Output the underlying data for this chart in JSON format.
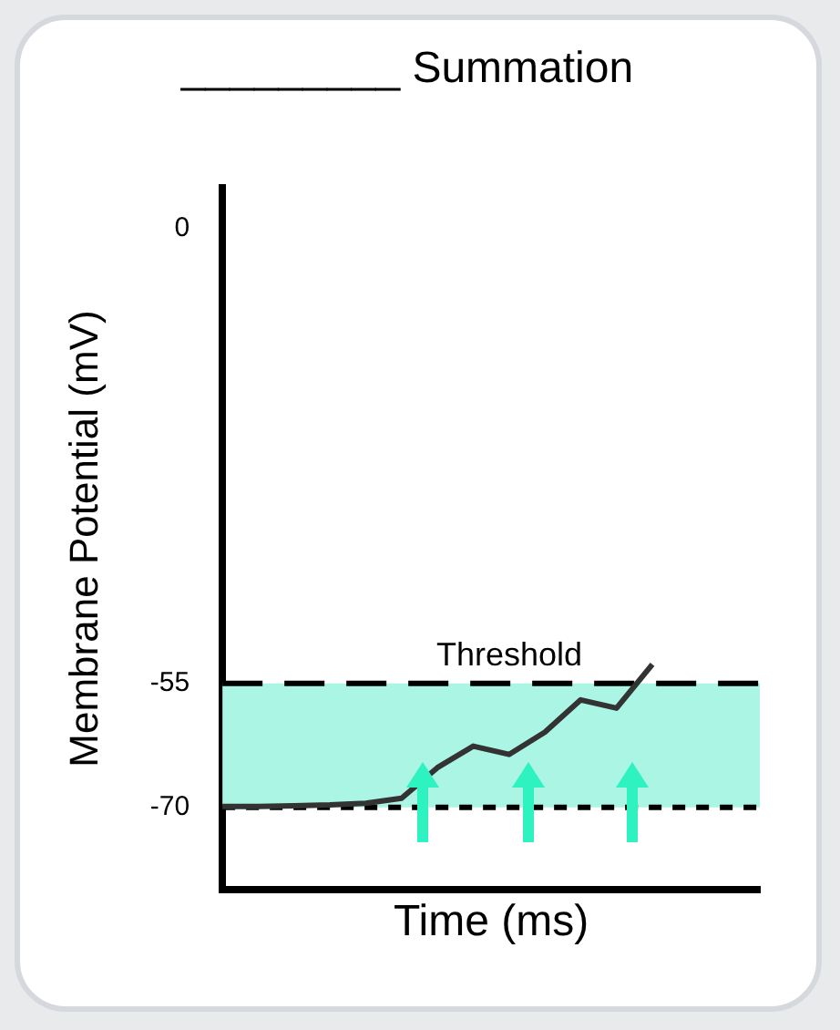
{
  "chart_data": {
    "type": "line",
    "title": "_________ Summation",
    "xlabel": "Time (ms)",
    "ylabel": "Membrane Potential (mV)",
    "categories": [
      null,
      null,
      null,
      null,
      null,
      null,
      null,
      null,
      null,
      null,
      null,
      null,
      null,
      null,
      null,
      null
    ],
    "ylim": [
      -80,
      5
    ],
    "yticks": [
      0,
      -55,
      -70
    ],
    "tick_labels": "y",
    "grid": false,
    "legend": false,
    "marker": "none",
    "series": [
      {
        "color": "#333333",
        "line_style": "solid",
        "values": [
          -69.9,
          -69.9,
          -69.8,
          -69.7,
          -69.5,
          -68.9,
          -65.2,
          -62.6,
          -63.6,
          -60.9,
          -57.0,
          -58.0,
          -52.7,
          null,
          null,
          null
        ]
      }
    ],
    "ref_lines": [
      {
        "axis": "y",
        "value": -55,
        "label": "Threshold",
        "color": "#000000",
        "line_style": "dashed"
      },
      {
        "axis": "y",
        "value": -70,
        "color": "#000000",
        "line_style": "dotted"
      }
    ],
    "bands": [
      {
        "axis": "y",
        "from": -70,
        "to": -55,
        "color": "#aaf5e3"
      }
    ]
  }
}
